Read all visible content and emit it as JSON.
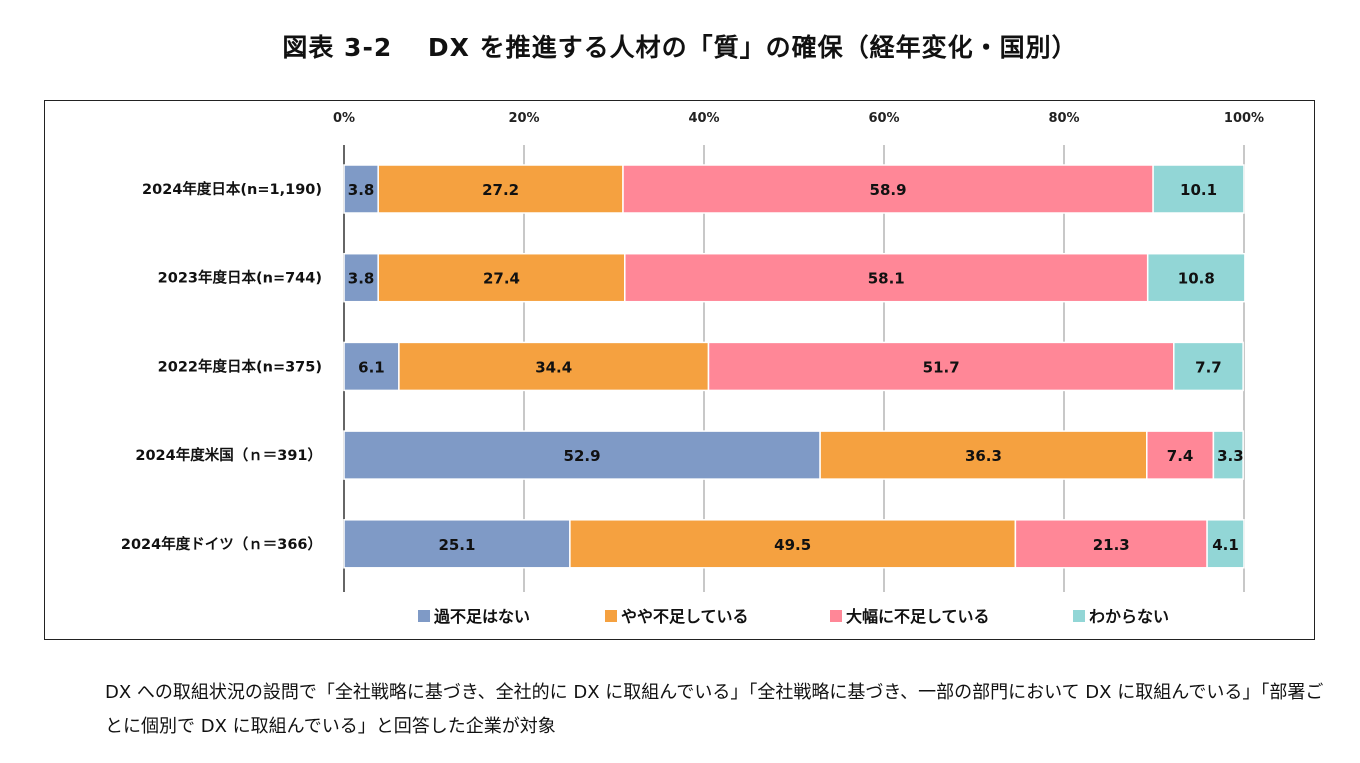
{
  "title": "図表 3-2　 DX を推進する人材の「質」の確保（経年変化・国別）",
  "note": "DX への取組状況の設問で「全社戦略に基づき、全社的に DX に取組んでいる」「全社戦略に基づき、一部の部門において DX に取組んでいる」「部署ごとに個別で DX に取組んでいる」と回答した企業が対象",
  "chart_data": {
    "type": "bar",
    "orientation": "horizontal",
    "stacked": "100%",
    "categories": [
      "2024年度日本(n=1,190)",
      "2023年度日本(n=744)",
      "2022年度日本(n=375)",
      "2024年度米国（ｎ＝391）",
      "2024年度ドイツ（ｎ＝366）"
    ],
    "xlim": [
      0,
      100
    ],
    "xticks": [
      "0%",
      "20%",
      "40%",
      "60%",
      "80%",
      "100%"
    ],
    "grid": true,
    "legend": "bottom",
    "series": [
      {
        "name": "過不足はない",
        "color": "#7F9AC6",
        "values": [
          3.8,
          3.8,
          6.1,
          52.9,
          25.1
        ]
      },
      {
        "name": "やや不足している",
        "color": "#F5A140",
        "values": [
          27.2,
          27.4,
          34.4,
          36.3,
          49.5
        ]
      },
      {
        "name": "大幅に不足している",
        "color": "#FF8797",
        "values": [
          58.9,
          58.1,
          51.7,
          7.4,
          21.3
        ]
      },
      {
        "name": "わからない",
        "color": "#92D6D6",
        "values": [
          10.1,
          10.8,
          7.7,
          3.3,
          4.1
        ]
      }
    ]
  }
}
